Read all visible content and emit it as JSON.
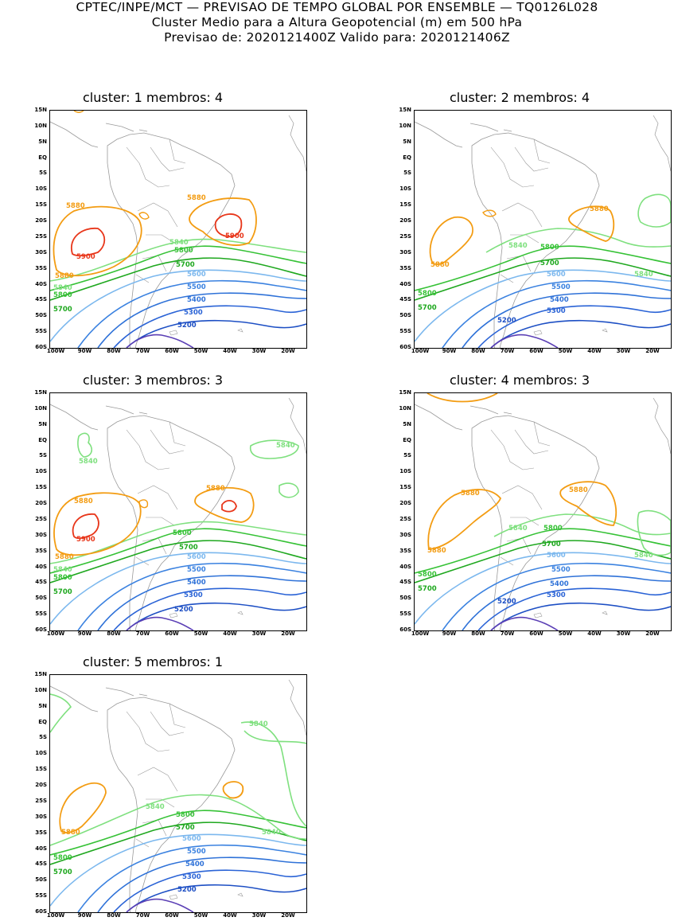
{
  "header": {
    "line1": "CPTEC/INPE/MCT — PREVISAO DE TEMPO GLOBAL POR ENSEMBLE — TQ0126L028",
    "line2": "Cluster Medio para a Altura Geopotencial (m) em 500 hPa",
    "line3": "Previsao de: 2020121400Z    Valido para: 2020121406Z"
  },
  "lat_labels": [
    "15N",
    "10N",
    "5N",
    "EQ",
    "5S",
    "10S",
    "15S",
    "20S",
    "25S",
    "30S",
    "35S",
    "40S",
    "45S",
    "50S",
    "55S",
    "60S"
  ],
  "lon_labels": [
    "100W",
    "90W",
    "80W",
    "70W",
    "60W",
    "50W",
    "40W",
    "30W",
    "20W"
  ],
  "colors": {
    "c5200": "#1d4fc4",
    "c5300": "#2a63d6",
    "c5400": "#2f72d8",
    "c5500": "#3b82e0",
    "c5600": "#7cb8ee",
    "c5700": "#1fa81f",
    "c5800": "#36c236",
    "c5840": "#7fe07f",
    "c5880": "#f39c12",
    "c5900": "#e8361a",
    "low": "#5b3fb5",
    "land": "#9a9a9a"
  },
  "panels": [
    {
      "title": "cluster: 1   membros: 4",
      "labels": {
        "l5880a": "5880",
        "l5880b": "5880",
        "l5880c": "5880",
        "l5900a": "5900",
        "l5900b": "5900",
        "l5840a": "5840",
        "l5840b": "5840",
        "l5800a": "5800",
        "l5800b": "5800",
        "l5700a": "5700",
        "l5700b": "5700",
        "l5600": "5600",
        "l5500": "5500",
        "l5400": "5400",
        "l5300": "5300",
        "l5200": "5200"
      }
    },
    {
      "title": "cluster: 2   membros: 4",
      "labels": {
        "l5880a": "5880",
        "l5880b": "5880",
        "l5840a": "5840",
        "l5840b": "5840",
        "l5800a": "5800",
        "l5800b": "5800",
        "l5700a": "5700",
        "l5700b": "5700",
        "l5600": "5600",
        "l5500": "5500",
        "l5400": "5400",
        "l5300": "5300",
        "l5200": "5200"
      }
    },
    {
      "title": "cluster: 3   membros: 3",
      "labels": {
        "l5880a": "5880",
        "l5880b": "5880",
        "l5880c": "5880",
        "l5900a": "5900",
        "l5840a": "5840",
        "l5840b": "5840",
        "l5840c": "5840",
        "l5800a": "5800",
        "l5800b": "5800",
        "l5700a": "5700",
        "l5700b": "5700",
        "l5600": "5600",
        "l5500": "5500",
        "l5400": "5400",
        "l5300": "5300",
        "l5200": "5200"
      }
    },
    {
      "title": "cluster: 4   membros: 3",
      "labels": {
        "l5880a": "5880",
        "l5880b": "5880",
        "l5880c": "5880",
        "l5840a": "5840",
        "l5840b": "5840",
        "l5800a": "5800",
        "l5800b": "5800",
        "l5700a": "5700",
        "l5700b": "5700",
        "l5600": "5600",
        "l5500": "5500",
        "l5400": "5400",
        "l5300": "5300",
        "l5200": "5200"
      }
    },
    {
      "title": "cluster: 5   membros: 1",
      "labels": {
        "l5880a": "5880",
        "l5840a": "5840",
        "l5840b": "5840",
        "l5840c": "5840",
        "l5800a": "5800",
        "l5800b": "5800",
        "l5700a": "5700",
        "l5700b": "5700",
        "l5600": "5600",
        "l5500": "5500",
        "l5400": "5400",
        "l5300": "5300",
        "l5200": "5200"
      }
    }
  ]
}
